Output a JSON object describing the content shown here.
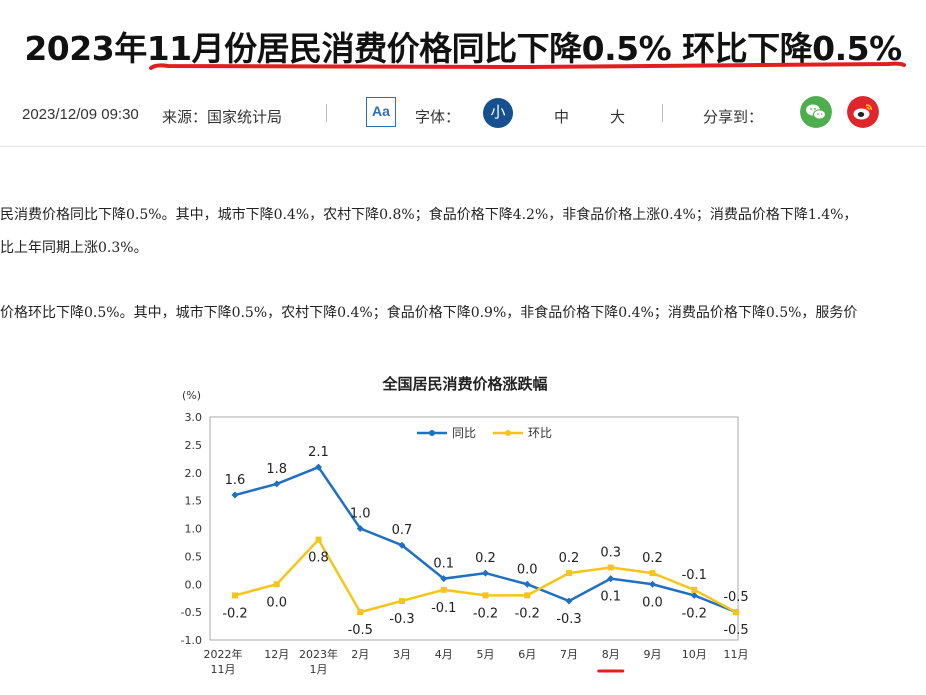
{
  "article": {
    "title": "2023年11月份居民消费价格同比下降0.5% 环比下降0.5%",
    "datetime": "2023/12/09 09:30",
    "source": "来源：国家统计局",
    "font_label": "字体：",
    "font_icon_text": "Aa",
    "font_sizes": [
      "小",
      "中",
      "大"
    ],
    "share_label": "分享到：",
    "paragraphs": [
      "民消费价格同比下降0.5%。其中，城市下降0.4%，农村下降0.8%；食品价格下降4.2%，非食品价格上涨0.4%；消费品价格下降1.4%，",
      "比上年同期上涨0.3%。",
      "价格环比下降0.5%。其中，城市下降0.5%，农村下降0.4%；食品价格下降0.9%，非食品价格下降0.4%；消费品价格下降0.5%，服务价"
    ]
  },
  "colors": {
    "series_yoy": "#1f6fc4",
    "series_mom": "#f5c518",
    "highlight_red": "#e02020",
    "wechat": "#4cae4c",
    "weibo": "#e0262d"
  },
  "chart_data": {
    "type": "line",
    "title": "全国居民消费价格涨跌幅",
    "ylabel": "(%)",
    "ylim": [
      -1.0,
      3.0
    ],
    "yticks": [
      "3.0",
      "2.5",
      "2.0",
      "1.5",
      "1.0",
      "0.5",
      "0.0",
      "-0.5",
      "-1.0"
    ],
    "yticks_values": [
      3.0,
      2.5,
      2.0,
      1.5,
      1.0,
      0.5,
      0.0,
      -0.5,
      -1.0
    ],
    "categories": [
      [
        "2022年",
        "11月"
      ],
      [
        "12月"
      ],
      [
        "2023年",
        "1月"
      ],
      [
        "2月"
      ],
      [
        "3月"
      ],
      [
        "4月"
      ],
      [
        "5月"
      ],
      [
        "6月"
      ],
      [
        "7月"
      ],
      [
        "8月"
      ],
      [
        "9月"
      ],
      [
        "10月"
      ],
      [
        "11月"
      ]
    ],
    "highlight_category": 9,
    "legend": "top",
    "grid": false,
    "series": [
      {
        "name": "同比",
        "values": [
          1.6,
          1.8,
          2.1,
          1.0,
          0.7,
          0.1,
          0.2,
          0.0,
          -0.3,
          0.1,
          0.0,
          -0.2,
          -0.5
        ],
        "labels": [
          "1.6",
          "1.8",
          "2.1",
          "1.0",
          "0.7",
          "0.1",
          "0.2",
          "0.0",
          "-0.3",
          "0.1",
          "0.0",
          "-0.2",
          "-0.5"
        ]
      },
      {
        "name": "环比",
        "values": [
          -0.2,
          0.0,
          0.8,
          -0.5,
          -0.3,
          -0.1,
          -0.2,
          -0.2,
          0.2,
          0.3,
          0.2,
          -0.1,
          -0.5
        ],
        "labels": [
          "-0.2",
          "0.0",
          "0.8",
          "-0.5",
          "-0.3",
          "-0.1",
          "-0.2",
          "-0.2",
          "0.2",
          "0.3",
          "0.2",
          "-0.1",
          "-0.5"
        ]
      }
    ]
  }
}
